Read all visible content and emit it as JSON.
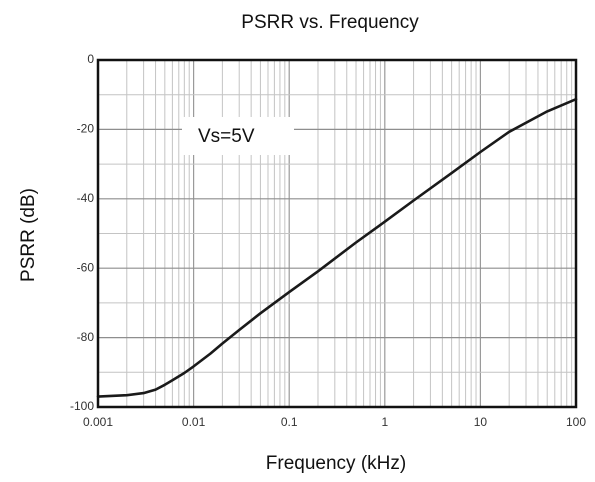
{
  "chart_data": {
    "type": "line",
    "title": "PSRR vs. Frequency",
    "xlabel": "Frequency (kHz)",
    "ylabel": "PSRR (dB)",
    "x_scale": "log",
    "xlim": [
      0.001,
      100
    ],
    "ylim": [
      -100,
      0
    ],
    "x_ticks": [
      "0.001",
      "0.01",
      "0.1",
      "1",
      "10",
      "100"
    ],
    "y_ticks": [
      "0",
      "-20",
      "-40",
      "-60",
      "-80",
      "-100"
    ],
    "grid": true,
    "annotation": "Vs=5V",
    "series": [
      {
        "x": [
          0.001,
          0.002,
          0.003,
          0.004,
          0.005,
          0.006,
          0.008,
          0.01,
          0.015,
          0.02,
          0.03,
          0.05,
          0.1,
          0.2,
          0.5,
          1,
          2,
          5,
          10,
          20,
          50,
          100
        ],
        "y": [
          -97,
          -96.6,
          -96,
          -95,
          -93.6,
          -92.3,
          -90.2,
          -88.3,
          -84.6,
          -81.7,
          -77.8,
          -73,
          -66.9,
          -60.9,
          -52.6,
          -46.6,
          -40.5,
          -32.6,
          -26.5,
          -20.7,
          -14.8,
          -11.3
        ]
      }
    ],
    "color": "#1a1a1a"
  }
}
